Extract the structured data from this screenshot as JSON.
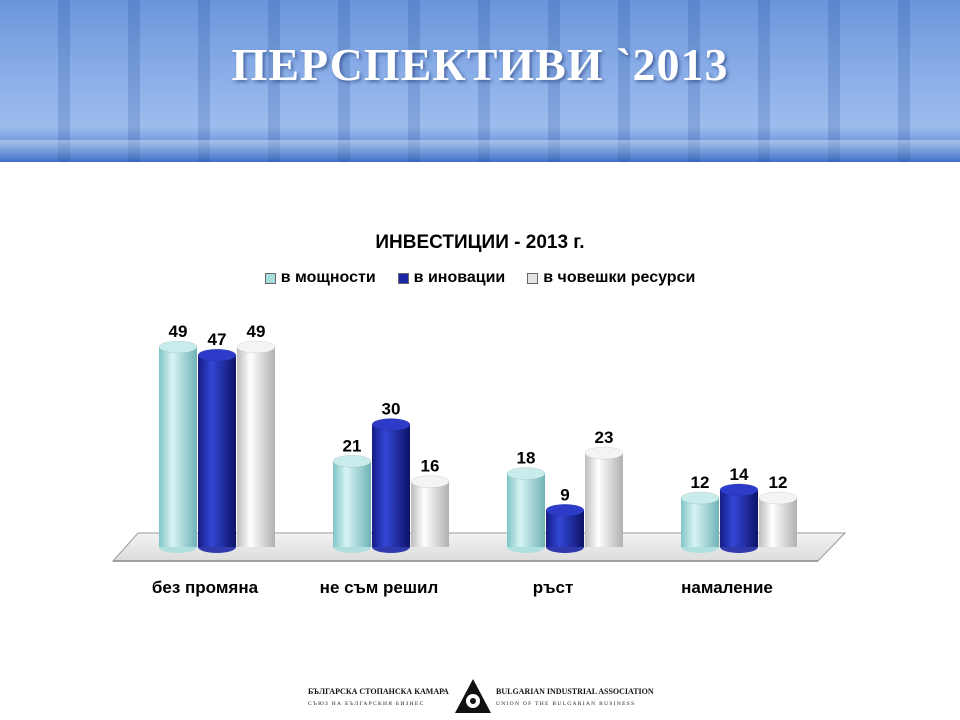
{
  "header": {
    "title": "ПЕРСПЕКТИВИ `2013"
  },
  "chart_data": {
    "type": "bar",
    "title": "ИНВЕСТИЦИИ - 2013 г.",
    "categories": [
      "без промяна",
      "не съм решил",
      "ръст",
      "намаление"
    ],
    "series": [
      {
        "name": "в мощности",
        "values": [
          49,
          21,
          18,
          12
        ],
        "color": "#a8dede"
      },
      {
        "name": "в иновации",
        "values": [
          47,
          30,
          9,
          14
        ],
        "color": "#1c27a6"
      },
      {
        "name": "в човешки ресурси",
        "values": [
          49,
          16,
          23,
          12
        ],
        "color": "#e4e4e4"
      }
    ],
    "legend_position": "top",
    "ylim": [
      0,
      49
    ],
    "data_labels": true,
    "grid": false,
    "style": "3d-cylinder"
  },
  "footer": {
    "org_bg": "БЪЛГАРСКА СТОПАНСКА КАМАРА",
    "org_bg_sub": "СЪЮЗ НА БЪЛГАРСКИЯ БИЗНЕС",
    "org_en": "BULGARIAN INDUSTRIAL ASSOCIATION",
    "org_en_sub": "UNION OF THE BULGARIAN BUSINESS"
  }
}
